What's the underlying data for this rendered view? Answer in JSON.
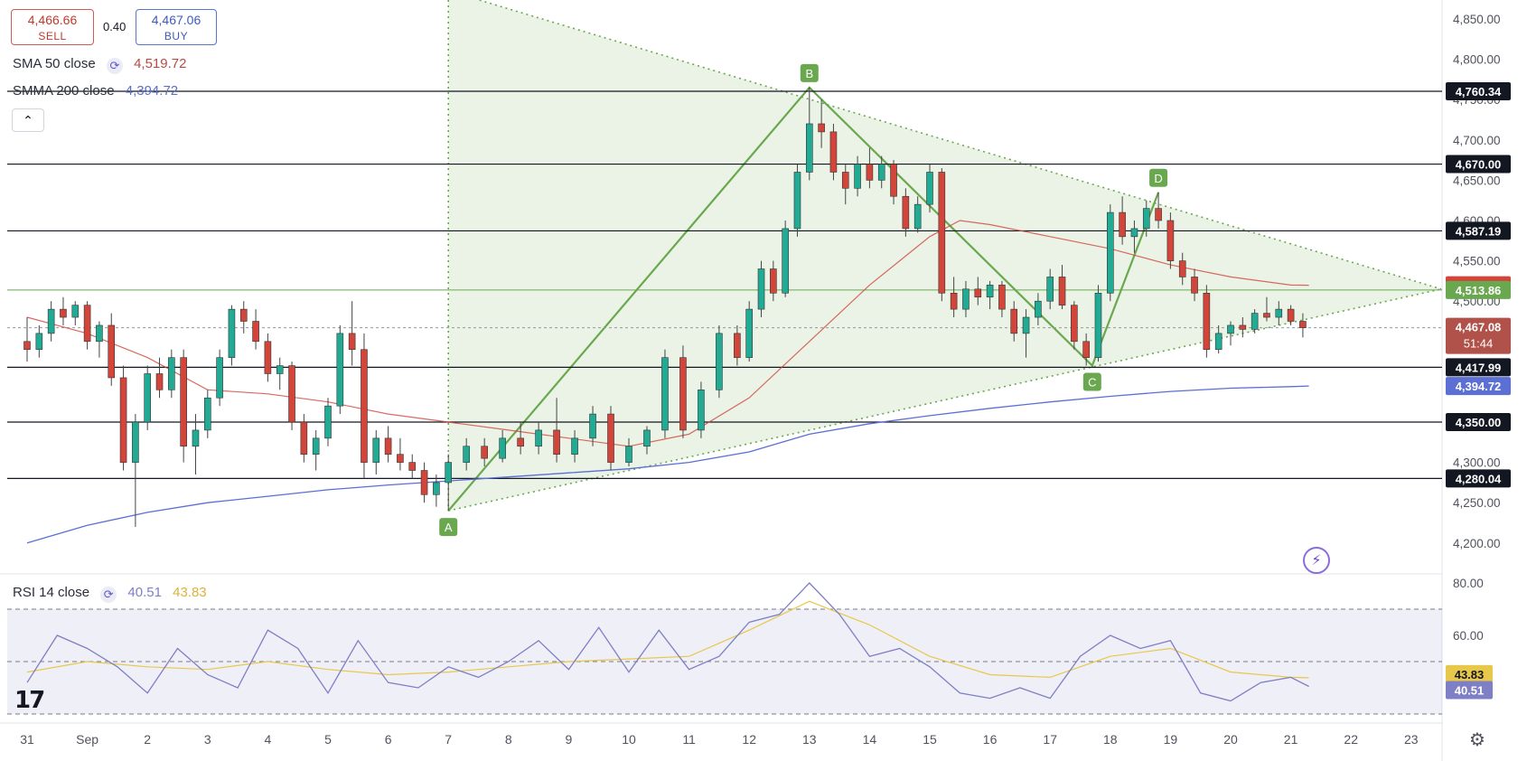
{
  "trade": {
    "sell_price": "4,466.66",
    "sell_label": "SELL",
    "spread": "0.40",
    "buy_price": "4,467.06",
    "buy_label": "BUY"
  },
  "legend": {
    "sma_name": "SMA 50 close",
    "sma_value": "4,519.72",
    "smma_name": "SMMA 200 close",
    "smma_value": "4,394.72",
    "rsi_name": "RSI 14 close",
    "rsi_value": "40.51",
    "rsi_ma_value": "43.83"
  },
  "icons": {
    "collapse": "chevron-up-icon",
    "refresh": "refresh-icon",
    "logo": "tradingview-logo",
    "spark": "lightning-icon",
    "settings": "gear-icon"
  },
  "colors": {
    "up": "#22ab94",
    "down": "#d1453b",
    "sma": "#d1453b",
    "smma": "#5b6fd4",
    "pattern": "#6aa84f",
    "rsi": "#7e7fc4",
    "rsi_ma": "#e8c84a",
    "level": "#131722"
  },
  "chart_data": {
    "type": "candlestick",
    "symbol_quote": "XAU/USD-like price chart",
    "x_ticks": [
      "31",
      "Sep",
      "2",
      "3",
      "4",
      "5",
      "6",
      "7",
      "8",
      "9",
      "10",
      "11",
      "12",
      "13",
      "14",
      "15",
      "16",
      "17",
      "18",
      "19",
      "20",
      "21",
      "22",
      "23"
    ],
    "y_ticks": [
      "4,850.00",
      "4,800.00",
      "4,750.00",
      "4,700.00",
      "4,650.00",
      "4,600.00",
      "4,550.00",
      "4,500.00",
      "4,450.00",
      "4,400.00",
      "4,350.00",
      "4,300.00",
      "4,250.00",
      "4,200.00"
    ],
    "ylim": [
      4175,
      4875
    ],
    "horizontal_levels": [
      {
        "value": 4760.34,
        "label": "4,760.34"
      },
      {
        "value": 4670.0,
        "label": "4,670.00"
      },
      {
        "value": 4587.19,
        "label": "4,587.19"
      },
      {
        "value": 4417.99,
        "label": "4,417.99"
      },
      {
        "value": 4350.0,
        "label": "4,350.00"
      },
      {
        "value": 4280.04,
        "label": "4,280.04"
      }
    ],
    "price_tags": [
      {
        "value": 4519.72,
        "label": "4,519.72",
        "kind": "sma"
      },
      {
        "value": 4513.86,
        "label": "4,513.86",
        "kind": "pattern"
      },
      {
        "value": 4467.08,
        "label": "4,467.08",
        "sub": "51:44",
        "kind": "last"
      },
      {
        "value": 4394.72,
        "label": "4,394.72",
        "kind": "smma"
      }
    ],
    "pattern_points": [
      {
        "label": "A",
        "day": 7.0,
        "value": 4240
      },
      {
        "label": "B",
        "day": 13.0,
        "value": 4765
      },
      {
        "label": "C",
        "day": 17.7,
        "value": 4420
      },
      {
        "label": "D",
        "day": 18.8,
        "value": 4635
      }
    ],
    "triangle": {
      "apex_day": 23.5,
      "apex_value": 4515,
      "start_day": 7.0,
      "upper_start_value": 4885,
      "lower_start_value": 4240
    },
    "candles": [
      {
        "d": 0.0,
        "o": 4450,
        "h": 4480,
        "l": 4425,
        "c": 4440
      },
      {
        "d": 0.2,
        "o": 4440,
        "h": 4470,
        "l": 4430,
        "c": 4460
      },
      {
        "d": 0.4,
        "o": 4460,
        "h": 4500,
        "l": 4450,
        "c": 4490
      },
      {
        "d": 0.6,
        "o": 4490,
        "h": 4505,
        "l": 4470,
        "c": 4480
      },
      {
        "d": 0.8,
        "o": 4480,
        "h": 4500,
        "l": 4470,
        "c": 4495
      },
      {
        "d": 1.0,
        "o": 4495,
        "h": 4500,
        "l": 4440,
        "c": 4450
      },
      {
        "d": 1.2,
        "o": 4450,
        "h": 4475,
        "l": 4430,
        "c": 4470
      },
      {
        "d": 1.4,
        "o": 4470,
        "h": 4485,
        "l": 4395,
        "c": 4405
      },
      {
        "d": 1.6,
        "o": 4405,
        "h": 4420,
        "l": 4290,
        "c": 4300
      },
      {
        "d": 1.8,
        "o": 4300,
        "h": 4360,
        "l": 4220,
        "c": 4350
      },
      {
        "d": 2.0,
        "o": 4350,
        "h": 4420,
        "l": 4340,
        "c": 4410
      },
      {
        "d": 2.2,
        "o": 4410,
        "h": 4430,
        "l": 4380,
        "c": 4390
      },
      {
        "d": 2.4,
        "o": 4390,
        "h": 4440,
        "l": 4380,
        "c": 4430
      },
      {
        "d": 2.6,
        "o": 4430,
        "h": 4440,
        "l": 4300,
        "c": 4320
      },
      {
        "d": 2.8,
        "o": 4320,
        "h": 4360,
        "l": 4285,
        "c": 4340
      },
      {
        "d": 3.0,
        "o": 4340,
        "h": 4390,
        "l": 4330,
        "c": 4380
      },
      {
        "d": 3.2,
        "o": 4380,
        "h": 4440,
        "l": 4370,
        "c": 4430
      },
      {
        "d": 3.4,
        "o": 4430,
        "h": 4495,
        "l": 4420,
        "c": 4490
      },
      {
        "d": 3.6,
        "o": 4490,
        "h": 4500,
        "l": 4460,
        "c": 4475
      },
      {
        "d": 3.8,
        "o": 4475,
        "h": 4490,
        "l": 4440,
        "c": 4450
      },
      {
        "d": 4.0,
        "o": 4450,
        "h": 4460,
        "l": 4400,
        "c": 4410
      },
      {
        "d": 4.2,
        "o": 4410,
        "h": 4430,
        "l": 4390,
        "c": 4420
      },
      {
        "d": 4.4,
        "o": 4420,
        "h": 4425,
        "l": 4340,
        "c": 4350
      },
      {
        "d": 4.6,
        "o": 4350,
        "h": 4360,
        "l": 4300,
        "c": 4310
      },
      {
        "d": 4.8,
        "o": 4310,
        "h": 4340,
        "l": 4290,
        "c": 4330
      },
      {
        "d": 5.0,
        "o": 4330,
        "h": 4380,
        "l": 4320,
        "c": 4370
      },
      {
        "d": 5.2,
        "o": 4370,
        "h": 4470,
        "l": 4360,
        "c": 4460
      },
      {
        "d": 5.4,
        "o": 4460,
        "h": 4500,
        "l": 4420,
        "c": 4440
      },
      {
        "d": 5.6,
        "o": 4440,
        "h": 4460,
        "l": 4280,
        "c": 4300
      },
      {
        "d": 5.8,
        "o": 4300,
        "h": 4340,
        "l": 4285,
        "c": 4330
      },
      {
        "d": 6.0,
        "o": 4330,
        "h": 4345,
        "l": 4300,
        "c": 4310
      },
      {
        "d": 6.2,
        "o": 4310,
        "h": 4330,
        "l": 4290,
        "c": 4300
      },
      {
        "d": 6.4,
        "o": 4300,
        "h": 4310,
        "l": 4280,
        "c": 4290
      },
      {
        "d": 6.6,
        "o": 4290,
        "h": 4300,
        "l": 4250,
        "c": 4260
      },
      {
        "d": 6.8,
        "o": 4260,
        "h": 4285,
        "l": 4245,
        "c": 4275
      },
      {
        "d": 7.0,
        "o": 4275,
        "h": 4310,
        "l": 4240,
        "c": 4300
      },
      {
        "d": 7.3,
        "o": 4300,
        "h": 4330,
        "l": 4290,
        "c": 4320
      },
      {
        "d": 7.6,
        "o": 4320,
        "h": 4330,
        "l": 4295,
        "c": 4305
      },
      {
        "d": 7.9,
        "o": 4305,
        "h": 4340,
        "l": 4300,
        "c": 4330
      },
      {
        "d": 8.2,
        "o": 4330,
        "h": 4350,
        "l": 4310,
        "c": 4320
      },
      {
        "d": 8.5,
        "o": 4320,
        "h": 4350,
        "l": 4310,
        "c": 4340
      },
      {
        "d": 8.8,
        "o": 4340,
        "h": 4380,
        "l": 4300,
        "c": 4310
      },
      {
        "d": 9.1,
        "o": 4310,
        "h": 4340,
        "l": 4300,
        "c": 4330
      },
      {
        "d": 9.4,
        "o": 4330,
        "h": 4370,
        "l": 4320,
        "c": 4360
      },
      {
        "d": 9.7,
        "o": 4360,
        "h": 4370,
        "l": 4290,
        "c": 4300
      },
      {
        "d": 10.0,
        "o": 4300,
        "h": 4330,
        "l": 4295,
        "c": 4320
      },
      {
        "d": 10.3,
        "o": 4320,
        "h": 4345,
        "l": 4310,
        "c": 4340
      },
      {
        "d": 10.6,
        "o": 4340,
        "h": 4440,
        "l": 4330,
        "c": 4430
      },
      {
        "d": 10.9,
        "o": 4430,
        "h": 4445,
        "l": 4330,
        "c": 4340
      },
      {
        "d": 11.2,
        "o": 4340,
        "h": 4400,
        "l": 4330,
        "c": 4390
      },
      {
        "d": 11.5,
        "o": 4390,
        "h": 4470,
        "l": 4380,
        "c": 4460
      },
      {
        "d": 11.8,
        "o": 4460,
        "h": 4470,
        "l": 4420,
        "c": 4430
      },
      {
        "d": 12.0,
        "o": 4430,
        "h": 4500,
        "l": 4425,
        "c": 4490
      },
      {
        "d": 12.2,
        "o": 4490,
        "h": 4550,
        "l": 4480,
        "c": 4540
      },
      {
        "d": 12.4,
        "o": 4540,
        "h": 4550,
        "l": 4500,
        "c": 4510
      },
      {
        "d": 12.6,
        "o": 4510,
        "h": 4600,
        "l": 4505,
        "c": 4590
      },
      {
        "d": 12.8,
        "o": 4590,
        "h": 4670,
        "l": 4580,
        "c": 4660
      },
      {
        "d": 13.0,
        "o": 4660,
        "h": 4765,
        "l": 4650,
        "c": 4720
      },
      {
        "d": 13.2,
        "o": 4720,
        "h": 4750,
        "l": 4690,
        "c": 4710
      },
      {
        "d": 13.4,
        "o": 4710,
        "h": 4720,
        "l": 4650,
        "c": 4660
      },
      {
        "d": 13.6,
        "o": 4660,
        "h": 4670,
        "l": 4620,
        "c": 4640
      },
      {
        "d": 13.8,
        "o": 4640,
        "h": 4680,
        "l": 4630,
        "c": 4670
      },
      {
        "d": 14.0,
        "o": 4670,
        "h": 4690,
        "l": 4640,
        "c": 4650
      },
      {
        "d": 14.2,
        "o": 4650,
        "h": 4680,
        "l": 4640,
        "c": 4670
      },
      {
        "d": 14.4,
        "o": 4670,
        "h": 4675,
        "l": 4620,
        "c": 4630
      },
      {
        "d": 14.6,
        "o": 4630,
        "h": 4640,
        "l": 4580,
        "c": 4590
      },
      {
        "d": 14.8,
        "o": 4590,
        "h": 4630,
        "l": 4585,
        "c": 4620
      },
      {
        "d": 15.0,
        "o": 4620,
        "h": 4670,
        "l": 4610,
        "c": 4660
      },
      {
        "d": 15.2,
        "o": 4660,
        "h": 4665,
        "l": 4500,
        "c": 4510
      },
      {
        "d": 15.4,
        "o": 4510,
        "h": 4530,
        "l": 4480,
        "c": 4490
      },
      {
        "d": 15.6,
        "o": 4490,
        "h": 4525,
        "l": 4480,
        "c": 4515
      },
      {
        "d": 15.8,
        "o": 4515,
        "h": 4530,
        "l": 4495,
        "c": 4505
      },
      {
        "d": 16.0,
        "o": 4505,
        "h": 4525,
        "l": 4490,
        "c": 4520
      },
      {
        "d": 16.2,
        "o": 4520,
        "h": 4525,
        "l": 4480,
        "c": 4490
      },
      {
        "d": 16.4,
        "o": 4490,
        "h": 4500,
        "l": 4450,
        "c": 4460
      },
      {
        "d": 16.6,
        "o": 4460,
        "h": 4490,
        "l": 4430,
        "c": 4480
      },
      {
        "d": 16.8,
        "o": 4480,
        "h": 4510,
        "l": 4470,
        "c": 4500
      },
      {
        "d": 17.0,
        "o": 4500,
        "h": 4540,
        "l": 4490,
        "c": 4530
      },
      {
        "d": 17.2,
        "o": 4530,
        "h": 4545,
        "l": 4490,
        "c": 4495
      },
      {
        "d": 17.4,
        "o": 4495,
        "h": 4500,
        "l": 4440,
        "c": 4450
      },
      {
        "d": 17.6,
        "o": 4450,
        "h": 4460,
        "l": 4420,
        "c": 4430
      },
      {
        "d": 17.8,
        "o": 4430,
        "h": 4520,
        "l": 4425,
        "c": 4510
      },
      {
        "d": 18.0,
        "o": 4510,
        "h": 4620,
        "l": 4500,
        "c": 4610
      },
      {
        "d": 18.2,
        "o": 4610,
        "h": 4630,
        "l": 4570,
        "c": 4580
      },
      {
        "d": 18.4,
        "o": 4580,
        "h": 4600,
        "l": 4560,
        "c": 4590
      },
      {
        "d": 18.6,
        "o": 4590,
        "h": 4625,
        "l": 4580,
        "c": 4615
      },
      {
        "d": 18.8,
        "o": 4615,
        "h": 4635,
        "l": 4590,
        "c": 4600
      },
      {
        "d": 19.0,
        "o": 4600,
        "h": 4610,
        "l": 4540,
        "c": 4550
      },
      {
        "d": 19.2,
        "o": 4550,
        "h": 4560,
        "l": 4520,
        "c": 4530
      },
      {
        "d": 19.4,
        "o": 4530,
        "h": 4540,
        "l": 4500,
        "c": 4510
      },
      {
        "d": 19.6,
        "o": 4510,
        "h": 4520,
        "l": 4430,
        "c": 4440
      },
      {
        "d": 19.8,
        "o": 4440,
        "h": 4470,
        "l": 4435,
        "c": 4460
      },
      {
        "d": 20.0,
        "o": 4460,
        "h": 4475,
        "l": 4445,
        "c": 4470
      },
      {
        "d": 20.2,
        "o": 4470,
        "h": 4480,
        "l": 4455,
        "c": 4465
      },
      {
        "d": 20.4,
        "o": 4465,
        "h": 4490,
        "l": 4460,
        "c": 4485
      },
      {
        "d": 20.6,
        "o": 4485,
        "h": 4505,
        "l": 4475,
        "c": 4480
      },
      {
        "d": 20.8,
        "o": 4480,
        "h": 4500,
        "l": 4470,
        "c": 4490
      },
      {
        "d": 21.0,
        "o": 4490,
        "h": 4495,
        "l": 4470,
        "c": 4475
      },
      {
        "d": 21.2,
        "o": 4475,
        "h": 4485,
        "l": 4455,
        "c": 4467
      }
    ],
    "sma50": [
      [
        0,
        4480
      ],
      [
        1,
        4460
      ],
      [
        2,
        4430
      ],
      [
        3,
        4390
      ],
      [
        4,
        4385
      ],
      [
        5,
        4375
      ],
      [
        6,
        4360
      ],
      [
        7,
        4350
      ],
      [
        8,
        4340
      ],
      [
        9,
        4330
      ],
      [
        10,
        4320
      ],
      [
        11,
        4335
      ],
      [
        12,
        4380
      ],
      [
        13,
        4450
      ],
      [
        14,
        4520
      ],
      [
        15,
        4580
      ],
      [
        15.5,
        4600
      ],
      [
        16,
        4595
      ],
      [
        17,
        4580
      ],
      [
        18,
        4565
      ],
      [
        19,
        4545
      ],
      [
        20,
        4530
      ],
      [
        21,
        4520
      ],
      [
        21.3,
        4519.72
      ]
    ],
    "smma200": [
      [
        0,
        4200
      ],
      [
        1,
        4222
      ],
      [
        2,
        4238
      ],
      [
        3,
        4250
      ],
      [
        4,
        4258
      ],
      [
        5,
        4266
      ],
      [
        6,
        4272
      ],
      [
        7,
        4277
      ],
      [
        8,
        4282
      ],
      [
        9,
        4287
      ],
      [
        10,
        4292
      ],
      [
        11,
        4300
      ],
      [
        12,
        4313
      ],
      [
        13,
        4335
      ],
      [
        14,
        4348
      ],
      [
        15,
        4358
      ],
      [
        16,
        4367
      ],
      [
        17,
        4375
      ],
      [
        18,
        4382
      ],
      [
        19,
        4388
      ],
      [
        20,
        4392
      ],
      [
        21,
        4394
      ],
      [
        21.3,
        4394.72
      ]
    ],
    "rsi": {
      "levels": [
        70,
        50,
        30
      ],
      "y_ticks": [
        "80.00",
        "60.00"
      ],
      "ylim": [
        28,
        82
      ],
      "rsi_line": [
        [
          0,
          42
        ],
        [
          0.5,
          60
        ],
        [
          1,
          55
        ],
        [
          1.5,
          48
        ],
        [
          2,
          38
        ],
        [
          2.5,
          55
        ],
        [
          3,
          45
        ],
        [
          3.5,
          40
        ],
        [
          4,
          62
        ],
        [
          4.5,
          55
        ],
        [
          5,
          38
        ],
        [
          5.5,
          58
        ],
        [
          6,
          42
        ],
        [
          6.5,
          40
        ],
        [
          7,
          48
        ],
        [
          7.5,
          44
        ],
        [
          8,
          50
        ],
        [
          8.5,
          58
        ],
        [
          9,
          47
        ],
        [
          9.5,
          63
        ],
        [
          10,
          46
        ],
        [
          10.5,
          62
        ],
        [
          11,
          47
        ],
        [
          11.5,
          52
        ],
        [
          12,
          65
        ],
        [
          12.5,
          68
        ],
        [
          13,
          80
        ],
        [
          13.5,
          68
        ],
        [
          14,
          52
        ],
        [
          14.5,
          55
        ],
        [
          15,
          48
        ],
        [
          15.5,
          38
        ],
        [
          16,
          36
        ],
        [
          16.5,
          40
        ],
        [
          17,
          36
        ],
        [
          17.5,
          52
        ],
        [
          18,
          60
        ],
        [
          18.5,
          55
        ],
        [
          19,
          58
        ],
        [
          19.5,
          38
        ],
        [
          20,
          35
        ],
        [
          20.5,
          42
        ],
        [
          21,
          44
        ],
        [
          21.3,
          40.51
        ]
      ],
      "ma_line": [
        [
          0,
          46
        ],
        [
          1,
          50
        ],
        [
          2,
          48
        ],
        [
          3,
          47
        ],
        [
          4,
          50
        ],
        [
          5,
          47
        ],
        [
          6,
          45
        ],
        [
          7,
          46
        ],
        [
          8,
          48
        ],
        [
          9,
          50
        ],
        [
          10,
          51
        ],
        [
          11,
          52
        ],
        [
          12,
          62
        ],
        [
          13,
          73
        ],
        [
          14,
          64
        ],
        [
          15,
          52
        ],
        [
          16,
          45
        ],
        [
          17,
          44
        ],
        [
          18,
          52
        ],
        [
          19,
          55
        ],
        [
          20,
          46
        ],
        [
          21,
          44
        ],
        [
          21.3,
          43.83
        ]
      ]
    }
  }
}
